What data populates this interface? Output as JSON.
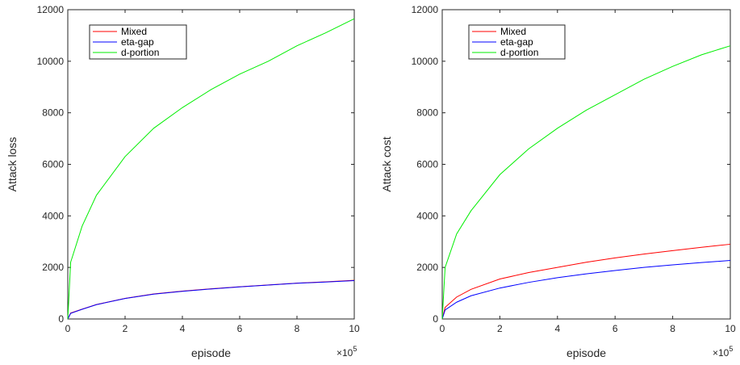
{
  "chart_data": [
    {
      "type": "line",
      "xlabel": "episode",
      "ylabel": "Attack loss",
      "x_exponent_base": "×10",
      "x_exponent_power": "5",
      "xlim": [
        0,
        10
      ],
      "ylim": [
        0,
        12000
      ],
      "xticks": [
        "0",
        "2",
        "4",
        "6",
        "8",
        "10"
      ],
      "yticks": [
        "0",
        "2000",
        "4000",
        "6000",
        "8000",
        "10000",
        "12000"
      ],
      "grid": false,
      "legend_position": "top-left",
      "x": [
        0,
        0.1,
        0.5,
        1,
        2,
        3,
        4,
        5,
        6,
        7,
        8,
        9,
        10
      ],
      "series": [
        {
          "name": "Mixed",
          "color": "#ff0000",
          "values": [
            0,
            230,
            380,
            560,
            800,
            970,
            1080,
            1170,
            1250,
            1320,
            1390,
            1440,
            1500
          ]
        },
        {
          "name": "eta-gap",
          "color": "#0000ff",
          "values": [
            0,
            220,
            375,
            555,
            795,
            965,
            1075,
            1165,
            1245,
            1315,
            1385,
            1435,
            1490
          ]
        },
        {
          "name": "d-portion",
          "color": "#00ee00",
          "values": [
            0,
            2200,
            3600,
            4800,
            6300,
            7400,
            8200,
            8900,
            9500,
            10000,
            10600,
            11100,
            11650
          ]
        }
      ]
    },
    {
      "type": "line",
      "xlabel": "episode",
      "ylabel": "Attack cost",
      "x_exponent_base": "×10",
      "x_exponent_power": "5",
      "xlim": [
        0,
        10
      ],
      "ylim": [
        0,
        12000
      ],
      "xticks": [
        "0",
        "2",
        "4",
        "6",
        "8",
        "10"
      ],
      "yticks": [
        "0",
        "2000",
        "4000",
        "6000",
        "8000",
        "10000",
        "12000"
      ],
      "grid": false,
      "legend_position": "top-left",
      "x": [
        0,
        0.1,
        0.5,
        1,
        2,
        3,
        4,
        5,
        6,
        7,
        8,
        9,
        10
      ],
      "series": [
        {
          "name": "Mixed",
          "color": "#ff0000",
          "values": [
            0,
            450,
            850,
            1150,
            1550,
            1800,
            2000,
            2200,
            2370,
            2520,
            2650,
            2780,
            2900
          ]
        },
        {
          "name": "eta-gap",
          "color": "#0000ff",
          "values": [
            0,
            350,
            650,
            900,
            1200,
            1420,
            1600,
            1750,
            1880,
            2000,
            2100,
            2190,
            2270
          ]
        },
        {
          "name": "d-portion",
          "color": "#00ee00",
          "values": [
            0,
            2000,
            3300,
            4200,
            5600,
            6600,
            7400,
            8100,
            8700,
            9300,
            9800,
            10250,
            10600
          ]
        }
      ]
    }
  ]
}
